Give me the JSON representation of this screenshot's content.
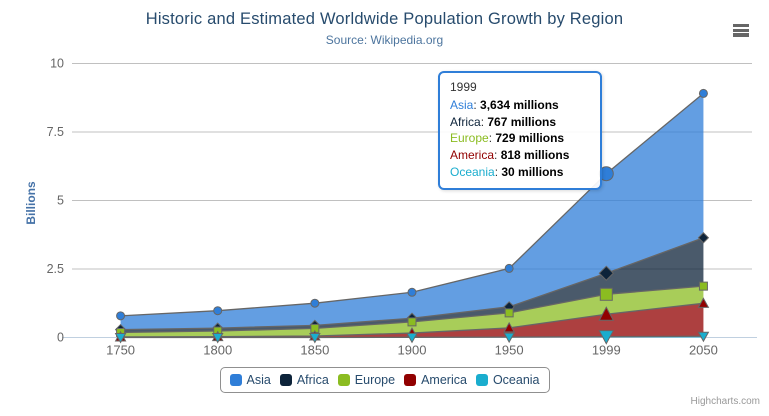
{
  "header": {
    "title": "Historic and Estimated Worldwide Population Growth by Region",
    "subtitle": "Source: Wikipedia.org"
  },
  "chart_data": {
    "type": "area",
    "stacking": "normal",
    "title": "Historic and Estimated Worldwide Population Growth by Region",
    "subtitle": "Source: Wikipedia.org",
    "categories": [
      "1750",
      "1800",
      "1850",
      "1900",
      "1950",
      "1999",
      "2050"
    ],
    "series": [
      {
        "name": "Asia",
        "color": "#2f7ed8",
        "marker": "circle",
        "values_millions": [
          502,
          635,
          809,
          947,
          1402,
          3634,
          5268
        ]
      },
      {
        "name": "Africa",
        "color": "#0d233a",
        "marker": "diamond",
        "values_millions": [
          106,
          107,
          111,
          133,
          221,
          767,
          1766
        ]
      },
      {
        "name": "Europe",
        "color": "#8bbc21",
        "marker": "square",
        "values_millions": [
          163,
          203,
          276,
          408,
          547,
          729,
          628
        ]
      },
      {
        "name": "America",
        "color": "#910000",
        "marker": "triangle",
        "values_millions": [
          18,
          31,
          54,
          156,
          339,
          818,
          1201
        ]
      },
      {
        "name": "Oceania",
        "color": "#1aadce",
        "marker": "triangle-down",
        "values_millions": [
          2,
          2,
          2,
          6,
          13,
          30,
          46
        ]
      }
    ],
    "xlabel": "",
    "ylabel": "Billions",
    "ylim": [
      0,
      10
    ],
    "yticks": [
      0,
      2.5,
      5,
      7.5,
      10
    ],
    "grid": true,
    "legend_position": "bottom-center",
    "hovered_category_index": 5,
    "line_color": "#666666",
    "grid_color": "#c0c0c0",
    "axis_line_color": "#c0d0e0",
    "axis_label_color": "#666666",
    "fill_opacity": 0.75
  },
  "tooltip": {
    "header": "1999",
    "unit": "millions",
    "rows": [
      {
        "name": "Asia",
        "color": "#2f7ed8",
        "value": "3,634 millions"
      },
      {
        "name": "Africa",
        "color": "#0d233a",
        "value": "767 millions"
      },
      {
        "name": "Europe",
        "color": "#8bbc21",
        "value": "729 millions"
      },
      {
        "name": "America",
        "color": "#910000",
        "value": "818 millions"
      },
      {
        "name": "Oceania",
        "color": "#1aadce",
        "value": "30 millions"
      }
    ]
  },
  "credits": {
    "label": "Highcharts.com"
  }
}
